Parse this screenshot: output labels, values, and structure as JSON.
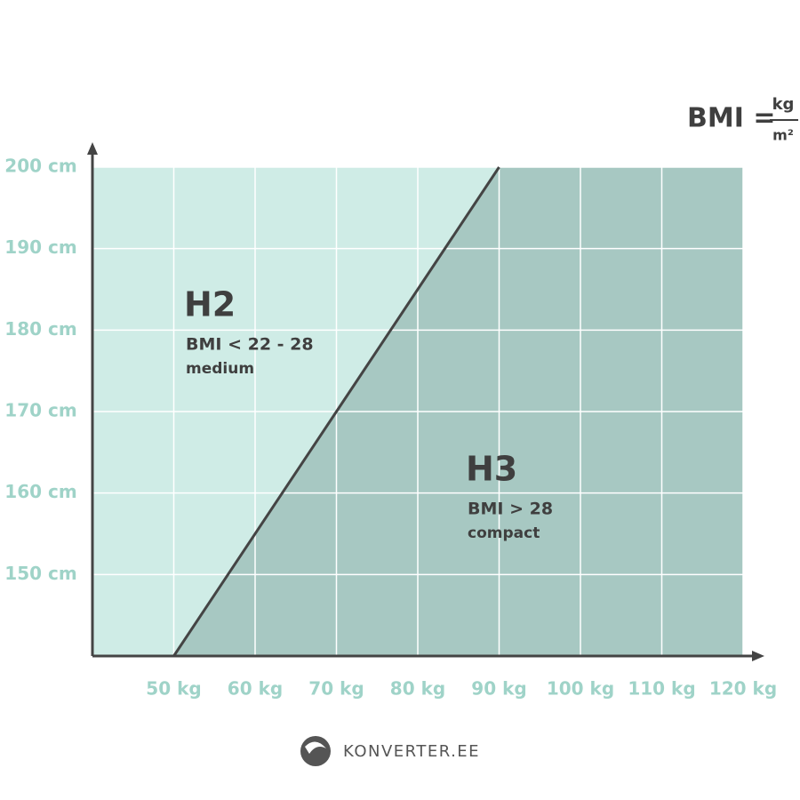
{
  "chart_data": {
    "type": "area",
    "formula": {
      "lhs": "BMI =",
      "numerator": "kg",
      "denominator": "m²"
    },
    "xlim": [
      40,
      120
    ],
    "ylim": [
      140,
      200
    ],
    "xticks": [
      {
        "value": 50,
        "label": "50 kg"
      },
      {
        "value": 60,
        "label": "60 kg"
      },
      {
        "value": 70,
        "label": "70 kg"
      },
      {
        "value": 80,
        "label": "80 kg"
      },
      {
        "value": 90,
        "label": "90 kg"
      },
      {
        "value": 100,
        "label": "100 kg"
      },
      {
        "value": 110,
        "label": "110 kg"
      },
      {
        "value": 120,
        "label": "120 kg"
      }
    ],
    "yticks": [
      {
        "value": 150,
        "label": "150 cm"
      },
      {
        "value": 160,
        "label": "160 cm"
      },
      {
        "value": 170,
        "label": "170 cm"
      },
      {
        "value": 180,
        "label": "180 cm"
      },
      {
        "value": 190,
        "label": "190 cm"
      },
      {
        "value": 200,
        "label": "200 cm"
      }
    ],
    "grid": true,
    "series": [
      {
        "x": [
          50,
          90
        ],
        "values": [
          140,
          200
        ],
        "color": "#444444"
      }
    ],
    "regions": [
      {
        "name": "H2",
        "description": "BMI < 22 - 28",
        "size": "medium",
        "color": "#cfece6"
      },
      {
        "name": "H3",
        "description": "BMI > 28",
        "size": "compact",
        "color": "#a7c8c2"
      }
    ],
    "watermark": "KONVERTER.EE"
  }
}
